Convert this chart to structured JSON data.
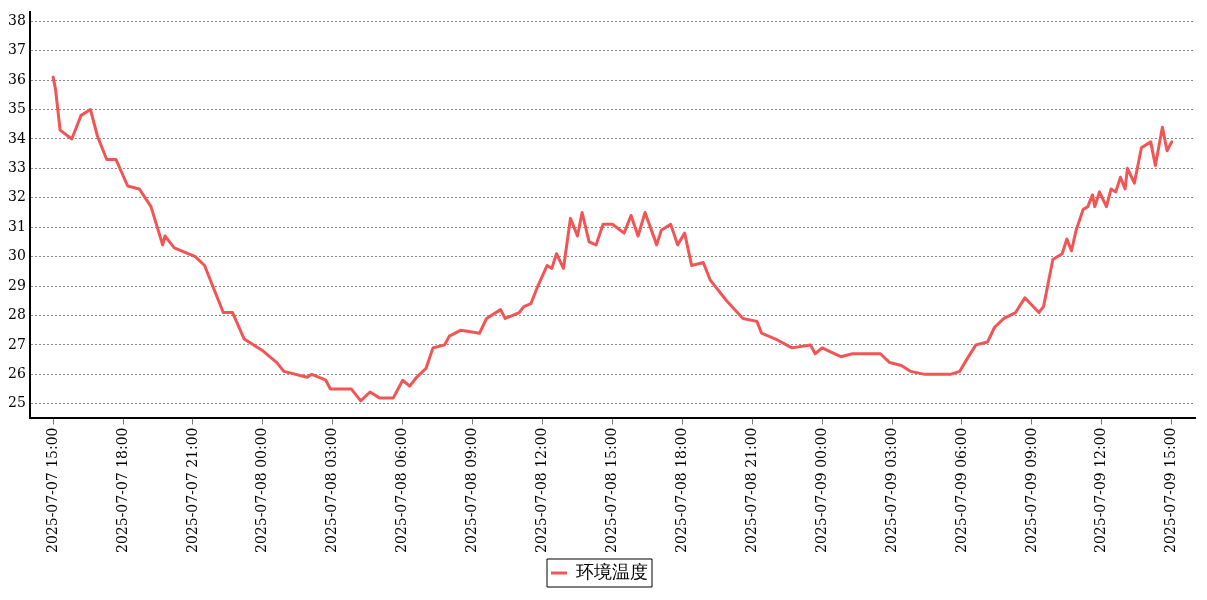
{
  "chart_data": {
    "type": "line",
    "legend": "bottom",
    "grid": "y",
    "marker": "none",
    "line_style": "solid",
    "xlim": [
      "2025-07-07T14:00",
      "2025-07-09T16:00"
    ],
    "ylim": [
      24.5,
      38.3
    ],
    "xticks": [
      {
        "value": "2025-07-07T15:00",
        "label": "2025-07-07 15:00"
      },
      {
        "value": "2025-07-07T18:00",
        "label": "2025-07-07 18:00"
      },
      {
        "value": "2025-07-07T21:00",
        "label": "2025-07-07 21:00"
      },
      {
        "value": "2025-07-08T00:00",
        "label": "2025-07-08 00:00"
      },
      {
        "value": "2025-07-08T03:00",
        "label": "2025-07-08 03:00"
      },
      {
        "value": "2025-07-08T06:00",
        "label": "2025-07-08 06:00"
      },
      {
        "value": "2025-07-08T09:00",
        "label": "2025-07-08 09:00"
      },
      {
        "value": "2025-07-08T12:00",
        "label": "2025-07-08 12:00"
      },
      {
        "value": "2025-07-08T15:00",
        "label": "2025-07-08 15:00"
      },
      {
        "value": "2025-07-08T18:00",
        "label": "2025-07-08 18:00"
      },
      {
        "value": "2025-07-08T21:00",
        "label": "2025-07-08 21:00"
      },
      {
        "value": "2025-07-09T00:00",
        "label": "2025-07-09 00:00"
      },
      {
        "value": "2025-07-09T03:00",
        "label": "2025-07-09 03:00"
      },
      {
        "value": "2025-07-09T06:00",
        "label": "2025-07-09 06:00"
      },
      {
        "value": "2025-07-09T09:00",
        "label": "2025-07-09 09:00"
      },
      {
        "value": "2025-07-09T12:00",
        "label": "2025-07-09 12:00"
      },
      {
        "value": "2025-07-09T15:00",
        "label": "2025-07-09 15:00"
      }
    ],
    "yticks": [
      25,
      26,
      27,
      28,
      29,
      30,
      31,
      32,
      33,
      34,
      35,
      36,
      37,
      38
    ],
    "series": [
      {
        "name": "环境温度",
        "color": "#f25556",
        "x": [
          "2025-07-07T15:00",
          "2025-07-07T15:06",
          "2025-07-07T15:18",
          "2025-07-07T15:48",
          "2025-07-07T16:12",
          "2025-07-07T16:36",
          "2025-07-07T16:54",
          "2025-07-07T17:18",
          "2025-07-07T17:42",
          "2025-07-07T18:12",
          "2025-07-07T18:42",
          "2025-07-07T19:12",
          "2025-07-07T19:42",
          "2025-07-07T19:48",
          "2025-07-07T20:12",
          "2025-07-07T21:06",
          "2025-07-07T21:30",
          "2025-07-07T21:54",
          "2025-07-07T22:18",
          "2025-07-07T22:42",
          "2025-07-07T23:12",
          "2025-07-08T00:00",
          "2025-07-08T00:36",
          "2025-07-08T00:54",
          "2025-07-08T01:54",
          "2025-07-08T02:06",
          "2025-07-08T02:42",
          "2025-07-08T02:54",
          "2025-07-08T03:24",
          "2025-07-08T03:48",
          "2025-07-08T04:12",
          "2025-07-08T04:36",
          "2025-07-08T05:00",
          "2025-07-08T05:36",
          "2025-07-08T06:00",
          "2025-07-08T06:18",
          "2025-07-08T06:36",
          "2025-07-08T07:00",
          "2025-07-08T07:18",
          "2025-07-08T07:48",
          "2025-07-08T08:00",
          "2025-07-08T08:30",
          "2025-07-08T09:18",
          "2025-07-08T09:36",
          "2025-07-08T10:12",
          "2025-07-08T10:24",
          "2025-07-08T11:00",
          "2025-07-08T11:12",
          "2025-07-08T11:30",
          "2025-07-08T11:48",
          "2025-07-08T12:12",
          "2025-07-08T12:24",
          "2025-07-08T12:36",
          "2025-07-08T12:54",
          "2025-07-08T13:12",
          "2025-07-08T13:30",
          "2025-07-08T13:42",
          "2025-07-08T14:00",
          "2025-07-08T14:18",
          "2025-07-08T14:36",
          "2025-07-08T15:00",
          "2025-07-08T15:30",
          "2025-07-08T15:48",
          "2025-07-08T16:06",
          "2025-07-08T16:24",
          "2025-07-08T16:54",
          "2025-07-08T17:06",
          "2025-07-08T17:30",
          "2025-07-08T17:48",
          "2025-07-08T18:06",
          "2025-07-08T18:24",
          "2025-07-08T18:54",
          "2025-07-08T19:12",
          "2025-07-08T19:54",
          "2025-07-08T20:36",
          "2025-07-08T21:12",
          "2025-07-08T21:24",
          "2025-07-08T22:00",
          "2025-07-08T22:42",
          "2025-07-08T23:30",
          "2025-07-08T23:42",
          "2025-07-09T00:00",
          "2025-07-09T00:48",
          "2025-07-09T01:18",
          "2025-07-09T02:30",
          "2025-07-09T02:54",
          "2025-07-09T03:24",
          "2025-07-09T03:48",
          "2025-07-09T04:24",
          "2025-07-09T05:30",
          "2025-07-09T05:54",
          "2025-07-09T06:12",
          "2025-07-09T06:36",
          "2025-07-09T07:06",
          "2025-07-09T07:24",
          "2025-07-09T07:48",
          "2025-07-09T08:18",
          "2025-07-09T08:42",
          "2025-07-09T09:18",
          "2025-07-09T09:30",
          "2025-07-09T09:54",
          "2025-07-09T10:18",
          "2025-07-09T10:30",
          "2025-07-09T10:42",
          "2025-07-09T10:54",
          "2025-07-09T11:12",
          "2025-07-09T11:24",
          "2025-07-09T11:36",
          "2025-07-09T11:42",
          "2025-07-09T11:54",
          "2025-07-09T12:12",
          "2025-07-09T12:24",
          "2025-07-09T12:36",
          "2025-07-09T12:48",
          "2025-07-09T13:00",
          "2025-07-09T13:06",
          "2025-07-09T13:24",
          "2025-07-09T13:42",
          "2025-07-09T14:06",
          "2025-07-09T14:18",
          "2025-07-09T14:36",
          "2025-07-09T14:48",
          "2025-07-09T15:00"
        ],
        "values": [
          36.1,
          35.7,
          34.3,
          34.0,
          34.8,
          35.0,
          34.1,
          33.3,
          33.3,
          32.4,
          32.3,
          31.7,
          30.4,
          30.7,
          30.3,
          30.0,
          29.7,
          28.9,
          28.1,
          28.1,
          27.2,
          26.8,
          26.4,
          26.1,
          25.9,
          26.0,
          25.8,
          25.5,
          25.5,
          25.5,
          25.1,
          25.4,
          25.2,
          25.2,
          25.8,
          25.6,
          25.9,
          26.2,
          26.9,
          27.0,
          27.3,
          27.5,
          27.4,
          27.9,
          28.2,
          27.9,
          28.1,
          28.3,
          28.4,
          29.0,
          29.7,
          29.6,
          30.1,
          29.6,
          31.3,
          30.7,
          31.5,
          30.5,
          30.4,
          31.1,
          31.1,
          30.8,
          31.4,
          30.7,
          31.5,
          30.4,
          30.9,
          31.1,
          30.4,
          30.8,
          29.7,
          29.8,
          29.2,
          28.5,
          27.9,
          27.8,
          27.4,
          27.2,
          26.9,
          27.0,
          26.7,
          26.9,
          26.6,
          26.7,
          26.7,
          26.4,
          26.3,
          26.1,
          26.0,
          26.0,
          26.1,
          26.5,
          27.0,
          27.1,
          27.6,
          27.9,
          28.1,
          28.6,
          28.1,
          28.3,
          29.9,
          30.1,
          30.6,
          30.2,
          30.9,
          31.6,
          31.7,
          32.1,
          31.7,
          32.2,
          31.7,
          32.3,
          32.2,
          32.7,
          32.3,
          33.0,
          32.5,
          33.7,
          33.9,
          33.1,
          34.4,
          33.6,
          33.9
        ]
      }
    ]
  }
}
